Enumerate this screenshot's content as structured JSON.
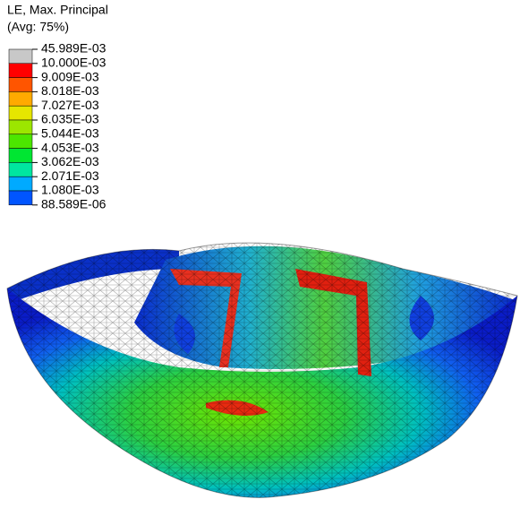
{
  "legend": {
    "title": "LE, Max. Principal",
    "subtitle": "(Avg: 75%)",
    "labels": [
      "45.989E-03",
      "10.000E-03",
      "9.009E-03",
      "8.018E-03",
      "7.027E-03",
      "6.035E-03",
      "5.044E-03",
      "4.053E-03",
      "3.062E-03",
      "2.071E-03",
      "1.080E-03",
      "88.589E-06"
    ],
    "colors": [
      "#c8c8c8",
      "#ff0000",
      "#ff5500",
      "#ffaa00",
      "#e6e600",
      "#9ce600",
      "#4ce600",
      "#00e632",
      "#00e6a0",
      "#00aaff",
      "#0055ff",
      "#0000ff"
    ]
  }
}
